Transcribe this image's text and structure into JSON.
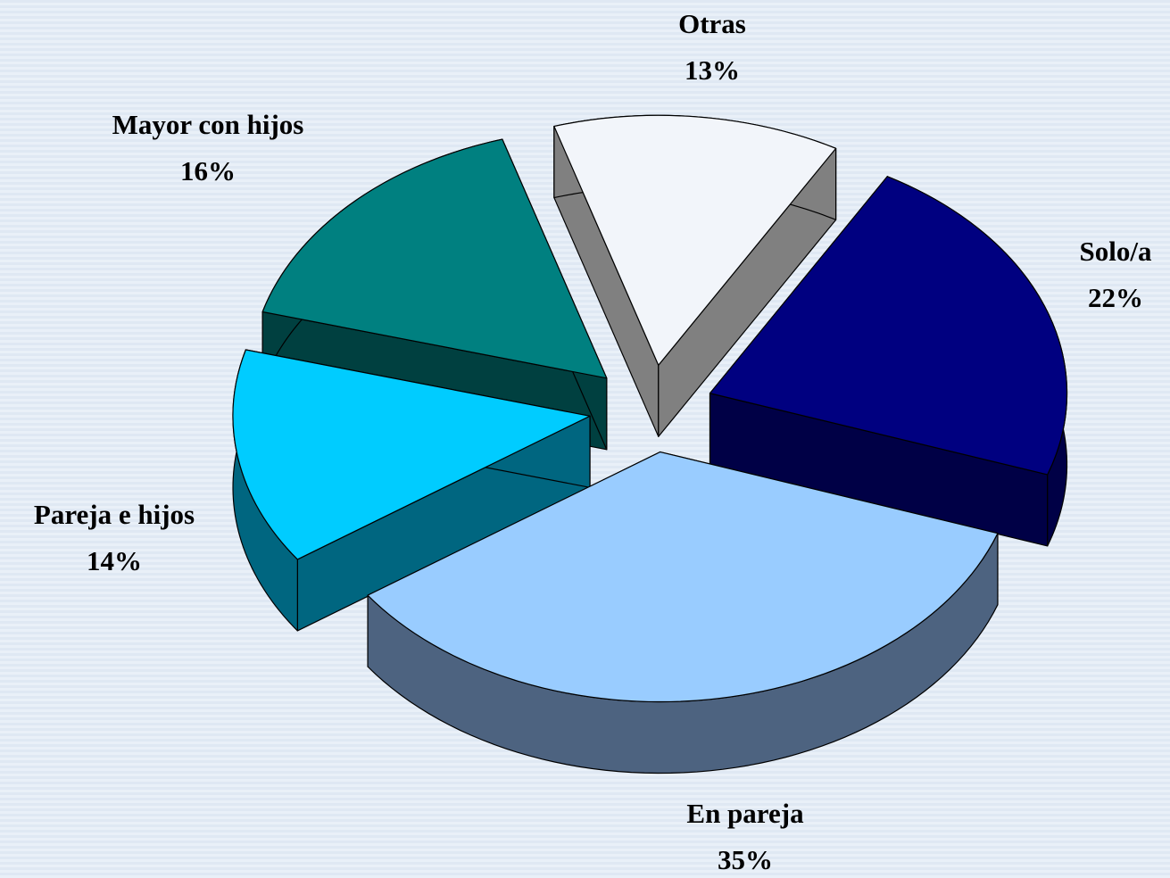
{
  "chart_data": {
    "type": "pie",
    "categories": [
      "Otras",
      "Solo/a",
      "En pareja",
      "Pareja e hijos",
      "Mayor con hijos"
    ],
    "values": [
      13,
      22,
      35,
      14,
      16
    ],
    "value_labels": [
      "13%",
      "22%",
      "35%",
      "14%",
      "16%"
    ],
    "colors": [
      "#f2f5fa",
      "#000080",
      "#99ccff",
      "#00ccff",
      "#008080"
    ],
    "side_colors": [
      "#808080",
      "#000046",
      "#4d6380",
      "#006680",
      "#004040"
    ]
  }
}
